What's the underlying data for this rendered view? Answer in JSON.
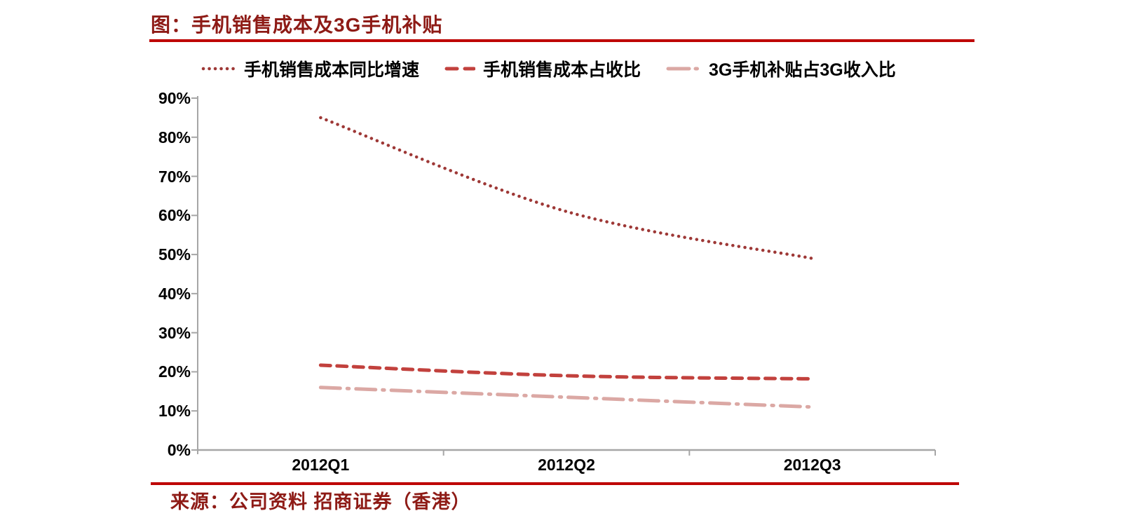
{
  "header": {
    "title": "图：手机销售成本及3G手机补贴"
  },
  "footer": {
    "source": "来源：公司资料 招商证券（香港）"
  },
  "colors": {
    "title_red": "#8E1B16",
    "rule_red": "#BE0504",
    "axis_gray": "#A6A6A6",
    "label_black": "#000000"
  },
  "chart_data": {
    "type": "line",
    "title": "图：手机销售成本及3G手机补贴",
    "categories": [
      "2012Q1",
      "2012Q2",
      "2012Q3"
    ],
    "series": [
      {
        "name": "手机销售成本同比增速",
        "style": "dotted",
        "color": "#9E3836",
        "values": [
          85,
          61,
          49
        ]
      },
      {
        "name": "手机销售成本占收比",
        "style": "dashed",
        "color": "#C2413D",
        "values": [
          21.7,
          19,
          18.2
        ]
      },
      {
        "name": "3G手机补贴占3G收入比",
        "style": "dashdot",
        "color": "#DBA8A4",
        "values": [
          16,
          13.5,
          11
        ]
      }
    ],
    "xlabel": "",
    "ylabel": "",
    "ylim": [
      0,
      90
    ],
    "y_tick_step": 10,
    "y_tick_labels": [
      "0%",
      "10%",
      "20%",
      "30%",
      "40%",
      "50%",
      "60%",
      "70%",
      "80%",
      "90%"
    ],
    "grid": false,
    "legend_position": "top",
    "smooth": true
  }
}
